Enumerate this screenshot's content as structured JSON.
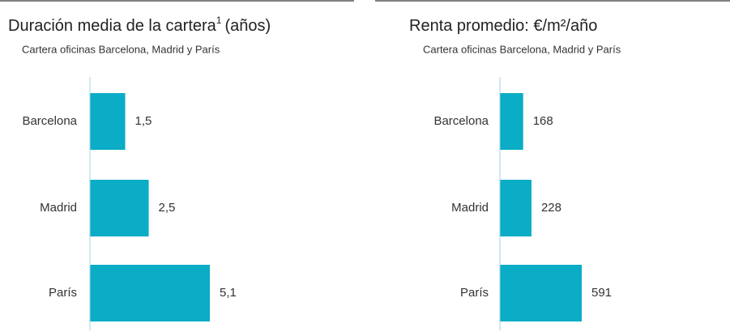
{
  "chart_data": [
    {
      "type": "barh",
      "title": "Duración media de la cartera",
      "title_note": "1",
      "title_suffix": "(años)",
      "subtitle": "Cartera oficinas Barcelona, Madrid y París",
      "categories": [
        "Barcelona",
        "Madrid",
        "París"
      ],
      "values": [
        1.5,
        2.5,
        5.1
      ],
      "value_labels": [
        "1,5",
        "2,5",
        "5,1"
      ],
      "color": "#0aacc6"
    },
    {
      "type": "barh",
      "title": "Renta promedio: €/m²/año",
      "subtitle": "Cartera oficinas Barcelona, Madrid y París",
      "categories": [
        "Barcelona",
        "Madrid",
        "París"
      ],
      "values": [
        168,
        228,
        591
      ],
      "value_labels": [
        "168",
        "228",
        "591"
      ],
      "color": "#0aacc6"
    }
  ]
}
